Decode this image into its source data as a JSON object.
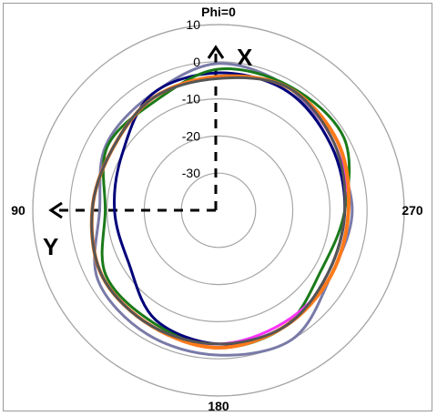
{
  "chart_data": {
    "type": "line",
    "polar": true,
    "angle_labels": [
      {
        "angle": 0,
        "text": "Phi=0"
      },
      {
        "angle": 90,
        "text": "90"
      },
      {
        "angle": 180,
        "text": "180"
      },
      {
        "angle": 270,
        "text": "270"
      }
    ],
    "radial_ticks": [
      {
        "value": 10,
        "text": "10"
      },
      {
        "value": 0,
        "text": "0"
      },
      {
        "value": -10,
        "text": "-10"
      },
      {
        "value": -20,
        "text": "-20"
      },
      {
        "value": -30,
        "text": "-30"
      }
    ],
    "rlim": [
      -40,
      10
    ],
    "grid": true,
    "annotations": {
      "x_axis": "X",
      "y_axis": "Y"
    },
    "series": [
      {
        "color": "#7a7aa8",
        "angles": [
          0,
          30,
          60,
          90,
          120,
          150,
          180,
          210,
          240,
          270,
          300,
          330
        ],
        "values": [
          -0.5,
          -4,
          -5,
          -8,
          -2.5,
          -1.5,
          -1,
          0,
          -5,
          -4,
          -5,
          -2
        ]
      },
      {
        "color": "#00007a",
        "angles": [
          0,
          30,
          60,
          90,
          120,
          150,
          180,
          210,
          240,
          270,
          300,
          330
        ],
        "values": [
          -3,
          -4,
          -10,
          -12,
          -12,
          -6,
          -4,
          -4,
          -6,
          -6,
          -5,
          -3
        ]
      },
      {
        "color": "#1a7a1a",
        "angles": [
          0,
          30,
          60,
          90,
          120,
          150,
          180,
          210,
          240,
          270,
          300,
          330
        ],
        "values": [
          -2,
          -6,
          -5.5,
          -9.5,
          -5,
          -5,
          -3,
          -4,
          -8,
          -6,
          -1,
          -1.5
        ]
      },
      {
        "color": "#ff33ff",
        "angles": [
          0,
          30,
          60,
          90,
          120,
          150,
          180,
          210,
          240,
          270,
          300,
          330
        ],
        "values": [
          -4,
          -5,
          -7,
          -6,
          -4,
          -4,
          -4,
          -5,
          -5,
          -5,
          -4,
          -2
        ]
      },
      {
        "color": "#ff7a1a",
        "angles": [
          0,
          30,
          60,
          90,
          120,
          150,
          180,
          210,
          240,
          270,
          300,
          330
        ],
        "values": [
          -4,
          -5,
          -7,
          -6,
          -4,
          -4,
          -3,
          -4,
          -5,
          -5,
          -3,
          -2
        ]
      },
      {
        "color": "#555555",
        "angles": [
          0,
          30,
          60,
          90,
          120,
          150,
          180,
          210,
          240,
          270,
          300,
          330
        ],
        "values": [
          -4.5,
          -5,
          -7,
          -6,
          -4,
          -4,
          -4,
          -4,
          -6,
          -6,
          -4,
          -2
        ]
      }
    ]
  }
}
